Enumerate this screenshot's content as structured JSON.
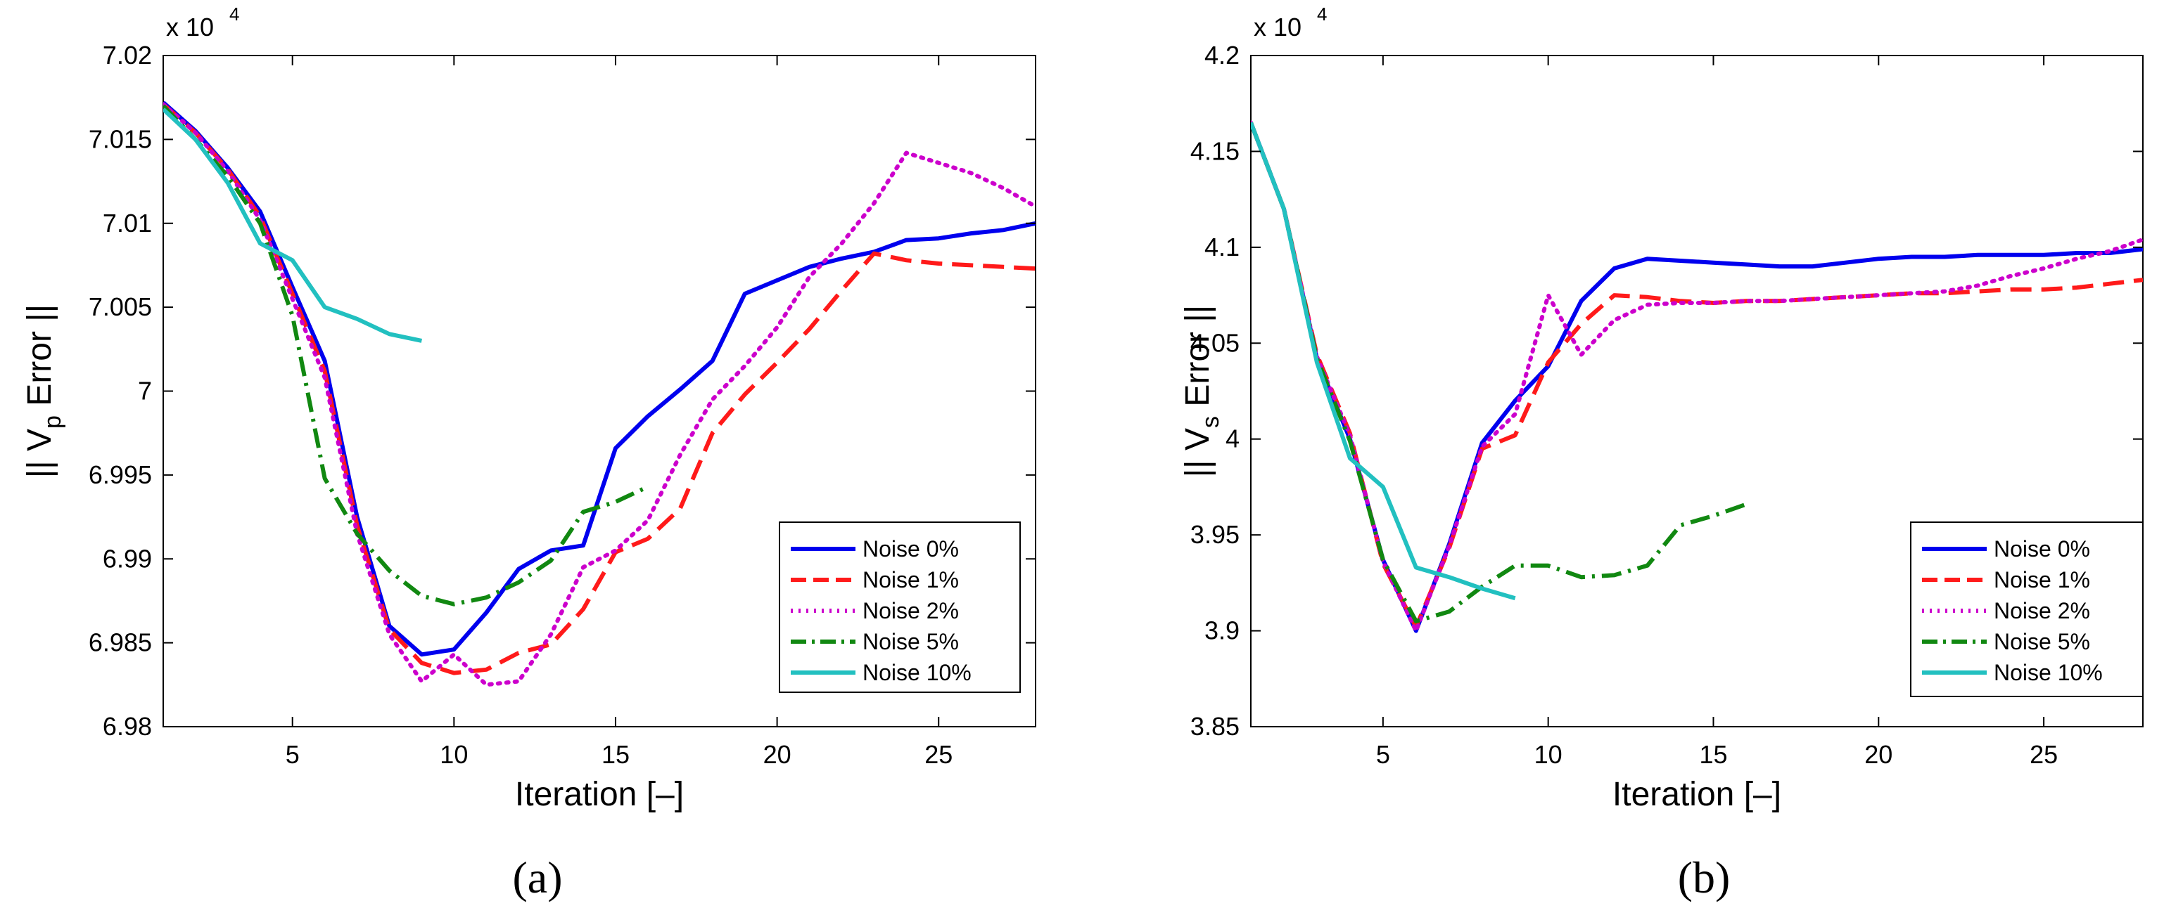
{
  "chart_data": [
    {
      "type": "line",
      "panel_label": "(a)",
      "xlabel": "Iteration [–]",
      "ylabel_parts": [
        "|| V",
        "p",
        " Error ||"
      ],
      "exponent_label": "x 10",
      "exponent_power": "4",
      "xlim": [
        1,
        28
      ],
      "ylim": [
        6.98,
        7.02
      ],
      "xticks": [
        5,
        10,
        15,
        20,
        25
      ],
      "xtick_labels": [
        "5",
        "10",
        "15",
        "20",
        "25"
      ],
      "yticks": [
        6.98,
        6.985,
        6.99,
        6.995,
        7.0,
        7.005,
        7.01,
        7.015,
        7.02
      ],
      "ytick_labels": [
        "6.98",
        "6.985",
        "6.99",
        "6.995",
        "7",
        "7.005",
        "7.01",
        "7.015",
        "7.02"
      ],
      "grid": false,
      "legend_position": "bottom-right",
      "series": [
        {
          "name": "Noise 0%",
          "color": "#0000ee",
          "dash": "solid",
          "x": [
            1,
            2,
            3,
            4,
            5,
            6,
            7,
            8,
            9,
            10,
            11,
            12,
            13,
            14,
            15,
            16,
            17,
            18,
            19,
            20,
            21,
            22,
            23,
            24,
            25,
            26,
            27,
            28
          ],
          "y": [
            7.0172,
            7.0155,
            7.0133,
            7.0107,
            7.0062,
            7.0018,
            6.9925,
            6.986,
            6.9843,
            6.9846,
            6.9868,
            6.9894,
            6.9905,
            6.9908,
            6.9966,
            6.9985,
            7.0001,
            7.0018,
            7.0058,
            7.0066,
            7.0074,
            7.0079,
            7.0083,
            7.009,
            7.0091,
            7.0094,
            7.0096,
            7.01
          ]
        },
        {
          "name": "Noise 1%",
          "color": "#ff1a1a",
          "dash": "dashed",
          "x": [
            1,
            2,
            3,
            4,
            5,
            6,
            7,
            8,
            9,
            10,
            11,
            12,
            13,
            14,
            15,
            16,
            17,
            18,
            19,
            20,
            21,
            22,
            23,
            24,
            25,
            26,
            27,
            28
          ],
          "y": [
            7.0171,
            7.0154,
            7.0132,
            7.0104,
            7.0058,
            7.0012,
            6.992,
            6.9858,
            6.9838,
            6.9832,
            6.9834,
            6.9844,
            6.9849,
            6.987,
            6.9904,
            6.9912,
            6.993,
            6.9975,
            6.9998,
            7.0017,
            7.0037,
            7.006,
            7.0082,
            7.0078,
            7.0076,
            7.0075,
            7.0074,
            7.0073
          ]
        },
        {
          "name": "Noise 2%",
          "color": "#cc00cc",
          "dash": "dotted",
          "x": [
            1,
            2,
            3,
            4,
            5,
            6,
            7,
            8,
            9,
            10,
            11,
            12,
            13,
            14,
            15,
            16,
            17,
            18,
            19,
            20,
            21,
            22,
            23,
            24,
            25,
            26,
            27,
            28
          ],
          "y": [
            7.0171,
            7.0154,
            7.0131,
            7.0102,
            7.0055,
            7.0008,
            6.9915,
            6.9855,
            6.9827,
            6.9843,
            6.9825,
            6.9827,
            6.9855,
            6.9895,
            6.9905,
            6.9923,
            6.9962,
            6.9995,
            7.0015,
            7.0038,
            7.0068,
            7.0088,
            7.0112,
            7.0142,
            7.0136,
            7.013,
            7.0121,
            7.011
          ]
        },
        {
          "name": "Noise 5%",
          "color": "#118811",
          "dash": "dashdot",
          "x": [
            1,
            2,
            3,
            4,
            5,
            6,
            7,
            8,
            9,
            10,
            11,
            12,
            13,
            14,
            15,
            16
          ],
          "y": [
            7.017,
            7.015,
            7.0128,
            7.01,
            7.0045,
            6.9948,
            6.9915,
            6.9893,
            6.9878,
            6.9873,
            6.9877,
            6.9886,
            6.9899,
            6.9928,
            6.9934,
            6.9943
          ]
        },
        {
          "name": "Noise 10%",
          "color": "#22c0c0",
          "dash": "solid",
          "x": [
            1,
            2,
            3,
            4,
            5,
            6,
            7,
            8,
            9
          ],
          "y": [
            7.0168,
            7.015,
            7.0124,
            7.0088,
            7.0078,
            7.005,
            7.0043,
            7.0034,
            7.003
          ]
        }
      ]
    },
    {
      "type": "line",
      "panel_label": "(b)",
      "xlabel": "Iteration [–]",
      "ylabel_parts": [
        "|| V",
        "s",
        " Error ||"
      ],
      "exponent_label": "x 10",
      "exponent_power": "4",
      "xlim": [
        1,
        28
      ],
      "ylim": [
        3.85,
        4.2
      ],
      "xticks": [
        5,
        10,
        15,
        20,
        25
      ],
      "xtick_labels": [
        "5",
        "10",
        "15",
        "20",
        "25"
      ],
      "yticks": [
        3.85,
        3.9,
        3.95,
        4.0,
        4.05,
        4.1,
        4.15,
        4.2
      ],
      "ytick_labels": [
        "3.85",
        "3.9",
        "3.95",
        "4",
        "4.05",
        "4.1",
        "4.15",
        "4.2"
      ],
      "grid": false,
      "legend_position": "bottom-right",
      "series": [
        {
          "name": "Noise 0%",
          "color": "#0000ee",
          "dash": "solid",
          "x": [
            1,
            2,
            3,
            4,
            5,
            6,
            7,
            8,
            9,
            10,
            11,
            12,
            13,
            14,
            15,
            16,
            17,
            18,
            19,
            20,
            21,
            22,
            23,
            24,
            25,
            26,
            27,
            28
          ],
          "y": [
            4.165,
            4.12,
            4.042,
            4.0,
            3.937,
            3.9,
            3.945,
            3.998,
            4.02,
            4.038,
            4.072,
            4.089,
            4.094,
            4.093,
            4.092,
            4.091,
            4.09,
            4.09,
            4.092,
            4.094,
            4.095,
            4.095,
            4.096,
            4.096,
            4.096,
            4.097,
            4.097,
            4.099
          ]
        },
        {
          "name": "Noise 1%",
          "color": "#ff1a1a",
          "dash": "dashed",
          "x": [
            1,
            2,
            3,
            4,
            5,
            6,
            7,
            8,
            9,
            10,
            11,
            12,
            13,
            14,
            15,
            16,
            17,
            18,
            19,
            20,
            21,
            22,
            23,
            24,
            25,
            26,
            27,
            28
          ],
          "y": [
            4.165,
            4.12,
            4.044,
            4.003,
            3.935,
            3.902,
            3.943,
            3.995,
            4.002,
            4.04,
            4.06,
            4.075,
            4.074,
            4.072,
            4.071,
            4.072,
            4.072,
            4.073,
            4.074,
            4.075,
            4.076,
            4.076,
            4.077,
            4.078,
            4.078,
            4.079,
            4.081,
            4.083
          ]
        },
        {
          "name": "Noise 2%",
          "color": "#cc00cc",
          "dash": "dotted",
          "x": [
            1,
            2,
            3,
            4,
            5,
            6,
            7,
            8,
            9,
            10,
            11,
            12,
            13,
            14,
            15,
            16,
            17,
            18,
            19,
            20,
            21,
            22,
            23,
            24,
            25,
            26,
            27,
            28
          ],
          "y": [
            4.165,
            4.12,
            4.043,
            4.002,
            3.936,
            3.9,
            3.944,
            3.996,
            4.013,
            4.075,
            4.044,
            4.062,
            4.07,
            4.071,
            4.071,
            4.072,
            4.072,
            4.073,
            4.074,
            4.075,
            4.076,
            4.077,
            4.08,
            4.085,
            4.089,
            4.094,
            4.098,
            4.104
          ]
        },
        {
          "name": "Noise 5%",
          "color": "#118811",
          "dash": "dashdot",
          "x": [
            1,
            2,
            3,
            4,
            5,
            6,
            7,
            8,
            9,
            10,
            11,
            12,
            13,
            14,
            15,
            16
          ],
          "y": [
            4.165,
            4.12,
            4.042,
            3.999,
            3.937,
            3.905,
            3.91,
            3.923,
            3.934,
            3.934,
            3.928,
            3.929,
            3.934,
            3.955,
            3.96,
            3.966
          ]
        },
        {
          "name": "Noise 10%",
          "color": "#22c0c0",
          "dash": "solid",
          "x": [
            1,
            2,
            3,
            4,
            5,
            6,
            7,
            8,
            9
          ],
          "y": [
            4.165,
            4.12,
            4.04,
            3.99,
            3.975,
            3.933,
            3.928,
            3.922,
            3.917
          ]
        }
      ]
    }
  ]
}
